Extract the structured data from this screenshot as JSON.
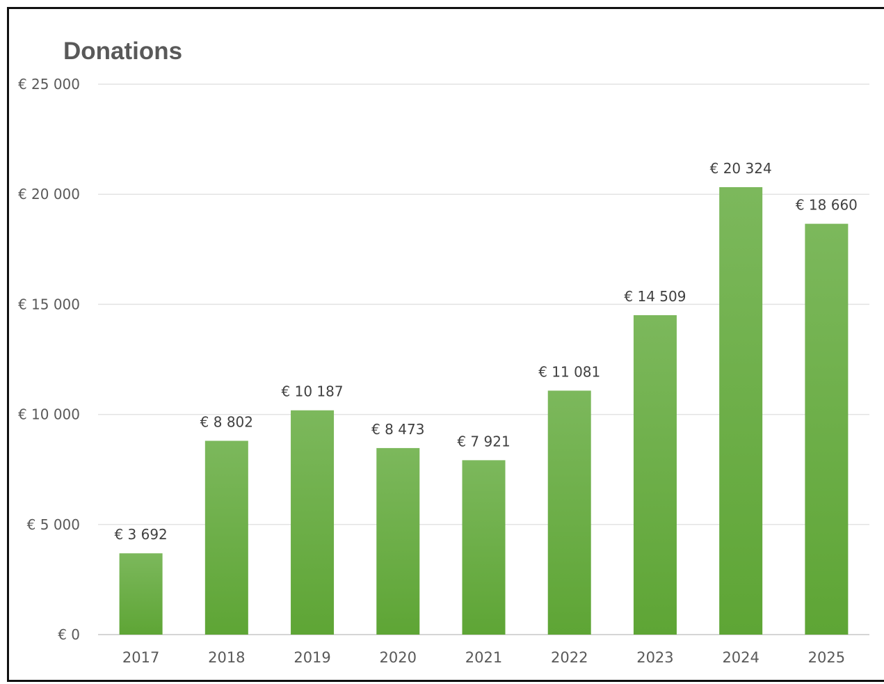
{
  "chart_data": {
    "type": "bar",
    "title": "Donations",
    "xlabel": "",
    "ylabel": "",
    "categories": [
      "2017",
      "2018",
      "2019",
      "2020",
      "2021",
      "2022",
      "2023",
      "2024",
      "2025"
    ],
    "values": [
      3692,
      8802,
      10187,
      8473,
      7921,
      11081,
      14509,
      20324,
      18660
    ],
    "data_labels": [
      "€ 3 692",
      "€ 8 802",
      "€ 10 187",
      "€ 8 473",
      "€ 7 921",
      "€ 11 081",
      "€ 14 509",
      "€ 20 324",
      "€ 18 660"
    ],
    "yticks": [
      0,
      5000,
      10000,
      15000,
      20000,
      25000
    ],
    "ytick_labels": [
      "€ 0",
      "€ 5 000",
      "€ 10 000",
      "€ 15 000",
      "€ 20 000",
      "€ 25 000"
    ],
    "ylim": [
      0,
      25000
    ],
    "grid": true,
    "legend": "none",
    "colors": {
      "bar_top": "#7cb85c",
      "bar_bottom": "#5ea535",
      "border": "#111111"
    }
  }
}
